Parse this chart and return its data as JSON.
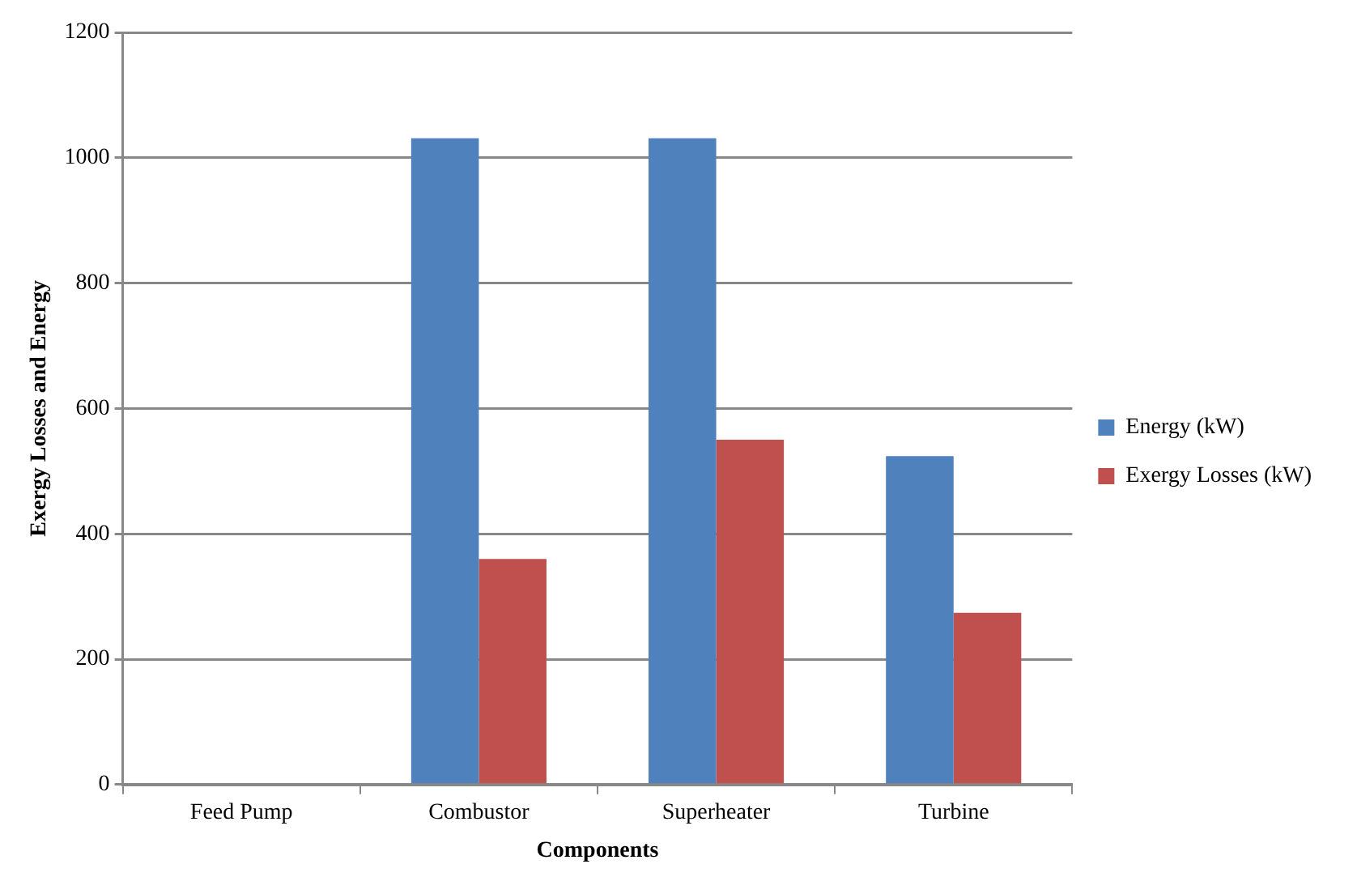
{
  "chart_data": {
    "type": "bar",
    "xlabel": "Components",
    "ylabel": "Exergy Losses and Energy",
    "categories": [
      "Feed Pump",
      "Combustor",
      "Superheater",
      "Turbine"
    ],
    "series": [
      {
        "name": "Energy (kW)",
        "color": "#4f81bd",
        "values": [
          0,
          1031,
          1031,
          524
        ]
      },
      {
        "name": "Exergy Losses (kW)",
        "color": "#c0504d",
        "values": [
          0,
          360,
          550,
          274
        ]
      }
    ],
    "ylim": [
      0,
      1200
    ],
    "yticks": [
      0,
      200,
      400,
      600,
      800,
      1000,
      1200
    ],
    "grid": "y",
    "legend": "right"
  }
}
